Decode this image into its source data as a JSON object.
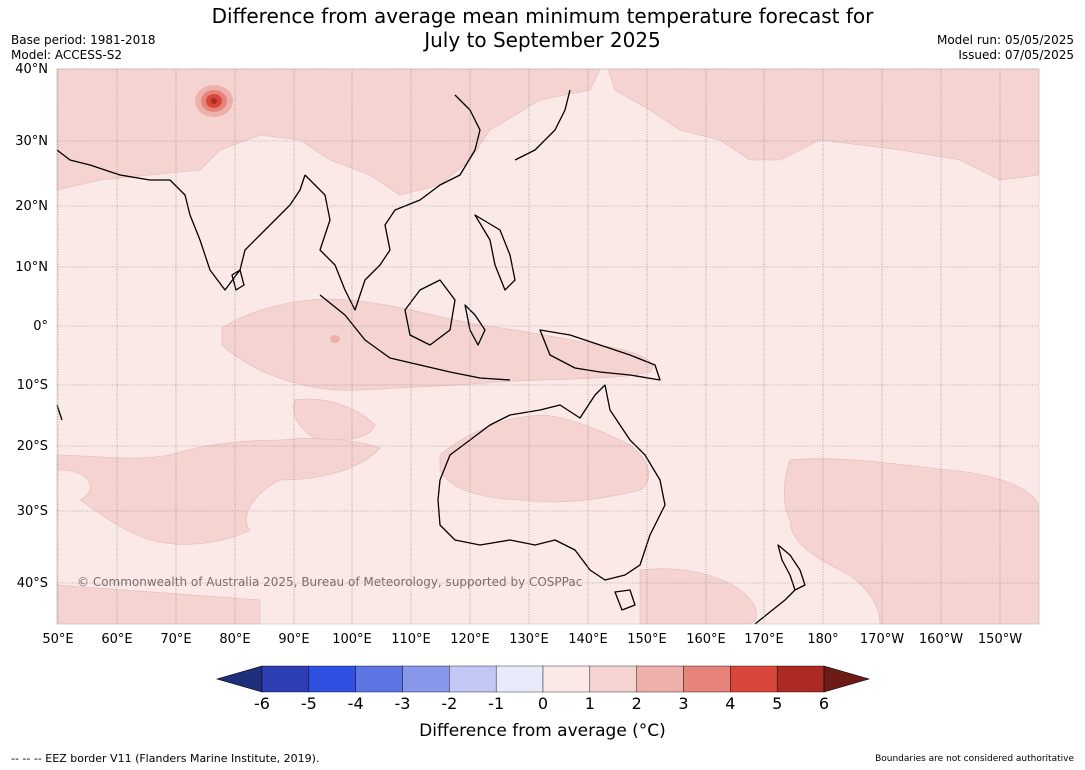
{
  "title": {
    "line1": "Difference from average mean minimum temperature forecast for",
    "line2": "July to September 2025"
  },
  "meta_left": {
    "base_period": "Base period: 1981-2018",
    "model": "Model: ACCESS-S2"
  },
  "meta_right": {
    "model_run": "Model run: 05/05/2025",
    "issued": "Issued: 07/05/2025"
  },
  "map": {
    "latitudes": [
      "40°N",
      "30°N",
      "20°N",
      "10°N",
      "0°",
      "10°S",
      "20°S",
      "30°S",
      "40°S"
    ],
    "longitudes": [
      "50°E",
      "60°E",
      "70°E",
      "80°E",
      "90°E",
      "100°E",
      "110°E",
      "120°E",
      "130°E",
      "140°E",
      "150°E",
      "160°E",
      "170°E",
      "180°",
      "170°W",
      "160°W",
      "150°W"
    ],
    "copyright": "© Commonwealth of Australia 2025, Bureau of Meteorology, supported by COSPPac",
    "colors": {
      "background_0_1": "#fbe9e7",
      "band_1_2": "#f4d3d0",
      "band_2_3": "#eeb0aa",
      "band_3_4": "#e6837a",
      "band_4_5": "#d9473c",
      "band_5_6": "#ab2a24"
    }
  },
  "colorbar": {
    "ticks": [
      "-6",
      "-5",
      "-4",
      "-3",
      "-2",
      "-1",
      "0",
      "1",
      "2",
      "3",
      "4",
      "5",
      "6"
    ],
    "colors": [
      "#1f2f7e",
      "#2e3fb6",
      "#2f4fe0",
      "#5d74e3",
      "#8897ea",
      "#c1c8f4",
      "#e9ebfa",
      "#fbe9e7",
      "#f4d3d0",
      "#eeb0aa",
      "#e6837a",
      "#d9473c",
      "#ab2a24",
      "#6e1a17"
    ],
    "label": "Difference from average (°C)"
  },
  "footer": {
    "eez": "--  --  -- EEZ border V11 (Flanders Marine Institute, 2019).",
    "disclaimer": "Boundaries are not considered authoritative"
  }
}
